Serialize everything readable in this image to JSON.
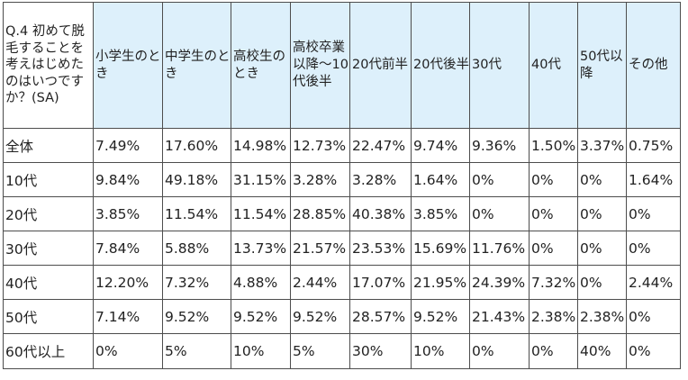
{
  "table": {
    "question": "Q.4 初めて脱毛することを考えはじめたのはいつですか？(SA)",
    "columns": [
      "小学生のとき",
      "中学生のとき",
      "高校生のとき",
      "高校卒業以降～10代後半",
      "20代前半",
      "20代後半",
      "30代",
      "40代",
      "50代以降",
      "その他"
    ],
    "rows": [
      {
        "label": "全体",
        "values": [
          "7.49%",
          "17.60%",
          "14.98%",
          "12.73%",
          "22.47%",
          "9.74%",
          "9.36%",
          "1.50%",
          "3.37%",
          "0.75%"
        ]
      },
      {
        "label": "10代",
        "values": [
          "9.84%",
          "49.18%",
          "31.15%",
          "3.28%",
          "3.28%",
          "1.64%",
          "0%",
          "0%",
          "0%",
          "1.64%"
        ]
      },
      {
        "label": "20代",
        "values": [
          "3.85%",
          "11.54%",
          "11.54%",
          "28.85%",
          "40.38%",
          "3.85%",
          "0%",
          "0%",
          "0%",
          "0%"
        ]
      },
      {
        "label": "30代",
        "values": [
          "7.84%",
          "5.88%",
          "13.73%",
          "21.57%",
          "23.53%",
          "15.69%",
          "11.76%",
          "0%",
          "0%",
          "0%"
        ]
      },
      {
        "label": "40代",
        "values": [
          "12.20%",
          "7.32%",
          "4.88%",
          "2.44%",
          "17.07%",
          "21.95%",
          "24.39%",
          "7.32%",
          "0%",
          "2.44%"
        ]
      },
      {
        "label": "50代",
        "values": [
          "7.14%",
          "9.52%",
          "9.52%",
          "9.52%",
          "28.57%",
          "9.52%",
          "21.43%",
          "2.38%",
          "2.38%",
          "0%"
        ]
      },
      {
        "label": "60代以上",
        "values": [
          "0%",
          "5%",
          "10%",
          "5%",
          "30%",
          "10%",
          "0%",
          "0%",
          "40%",
          "0%"
        ]
      }
    ]
  },
  "colors": {
    "header_background": "#ddf0fb",
    "border": "#4d4d4d",
    "text": "#222222"
  }
}
